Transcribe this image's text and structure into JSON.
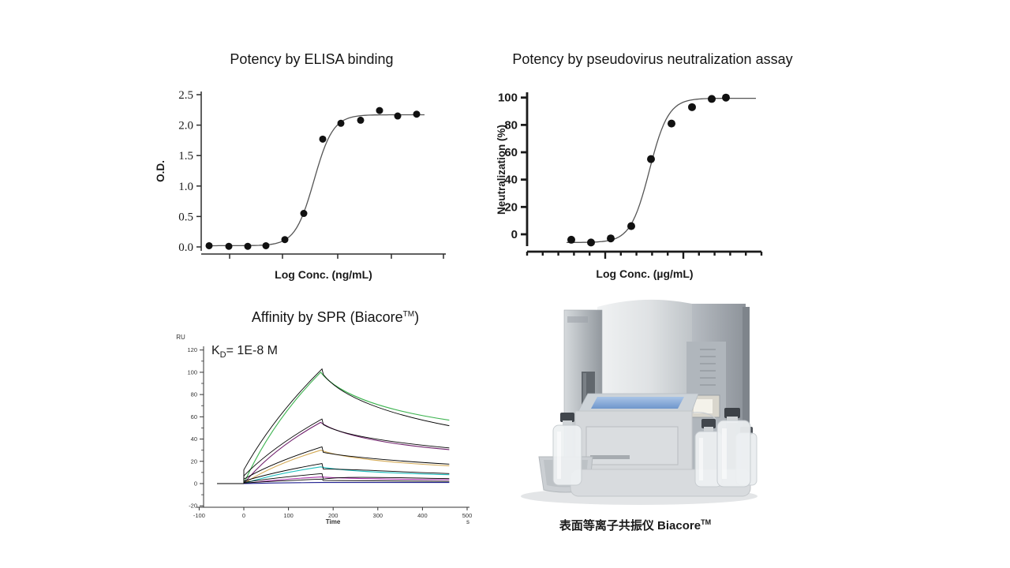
{
  "figure": {
    "background": "#ffffff",
    "caption": {
      "text": "表面等离子共振仪 Biacore",
      "tm": "TM"
    }
  },
  "chart_data": [
    {
      "id": "elisa-binding",
      "type": "scatter",
      "title": "Potency by ELISA binding",
      "xlabel": "Log Conc. (ng/mL)",
      "ylabel": "O.D.",
      "ylim": [
        0,
        2.5
      ],
      "ytick_step": 0.5,
      "yticks": [
        "0.0",
        "0.5",
        "1.0",
        "1.5",
        "2.0",
        "2.5"
      ],
      "xticks_unlabeled": 5,
      "points_od": [
        0.02,
        0.01,
        0.01,
        0.02,
        0.12,
        0.55,
        1.77,
        2.03,
        2.08,
        2.24,
        2.15,
        2.18
      ],
      "fit": {
        "type": "sigmoid",
        "bottom": 0.02,
        "top": 2.17
      },
      "point_color": "#111111",
      "curve_color": "#555555",
      "axis_color": "#2b2b2b"
    },
    {
      "id": "pseudovirus-neutralization",
      "type": "scatter",
      "title": "Potency by pseudovirus neutralization  assay",
      "xlabel": "Log Conc. (µg/mL)",
      "ylabel": "Neutralization (%)",
      "ylim": [
        0,
        100
      ],
      "ytick_step": 20,
      "yticks": [
        "0",
        "20",
        "40",
        "60",
        "80",
        "100"
      ],
      "points_pct": [
        -4,
        -6,
        -3,
        6,
        55,
        81,
        93,
        99,
        100
      ],
      "fit": {
        "type": "sigmoid",
        "bottom": -6,
        "top": 99.5
      },
      "point_color": "#111111",
      "curve_color": "#555555",
      "axis_color": "#1a1a1a"
    },
    {
      "id": "spr-sensorgram",
      "type": "line",
      "title_prefix": "Affinity by SPR (Biacore",
      "title_tm": "TM",
      "title_suffix": ")",
      "annotation_kd": {
        "k": "K",
        "sub": "D",
        "rest": "= 1E-8 M"
      },
      "y_unit": "RU",
      "x_label": "Time",
      "x_unit": "s",
      "ylim": [
        -20,
        120
      ],
      "yticks": [
        -20,
        0,
        20,
        40,
        60,
        80,
        100,
        120
      ],
      "xlim": [
        -100,
        500
      ],
      "xticks": [
        -100,
        0,
        100,
        200,
        300,
        400,
        500
      ],
      "baseline_start_s": -60,
      "association_end_s": 175,
      "dissociation_end_s": 460,
      "series": [
        {
          "name": "conc-1-highest",
          "color": "#3cb34f",
          "peak_RU": 103,
          "end_RU": 57,
          "fit_end_RU": 52
        },
        {
          "name": "conc-2",
          "color": "#6f1f6b",
          "peak_RU": 58,
          "end_RU": 30.5,
          "fit_end_RU": 32
        },
        {
          "name": "conc-3",
          "color": "#d4aa55",
          "peak_RU": 33,
          "end_RU": 16,
          "fit_end_RU": 17.5
        },
        {
          "name": "conc-4",
          "color": "#22bfbf",
          "peak_RU": 18,
          "end_RU": 8,
          "fit_end_RU": 9
        },
        {
          "name": "conc-5",
          "color": "#aa33aa",
          "peak_RU": 9,
          "end_RU": 3.5,
          "fit_end_RU": 4.5
        },
        {
          "name": "conc-6",
          "color": "#1f1f8f",
          "peak_RU": 4,
          "end_RU": 1,
          "fit_end_RU": 2
        }
      ],
      "fit_color": "#000000",
      "axis_color": "#333333"
    }
  ]
}
